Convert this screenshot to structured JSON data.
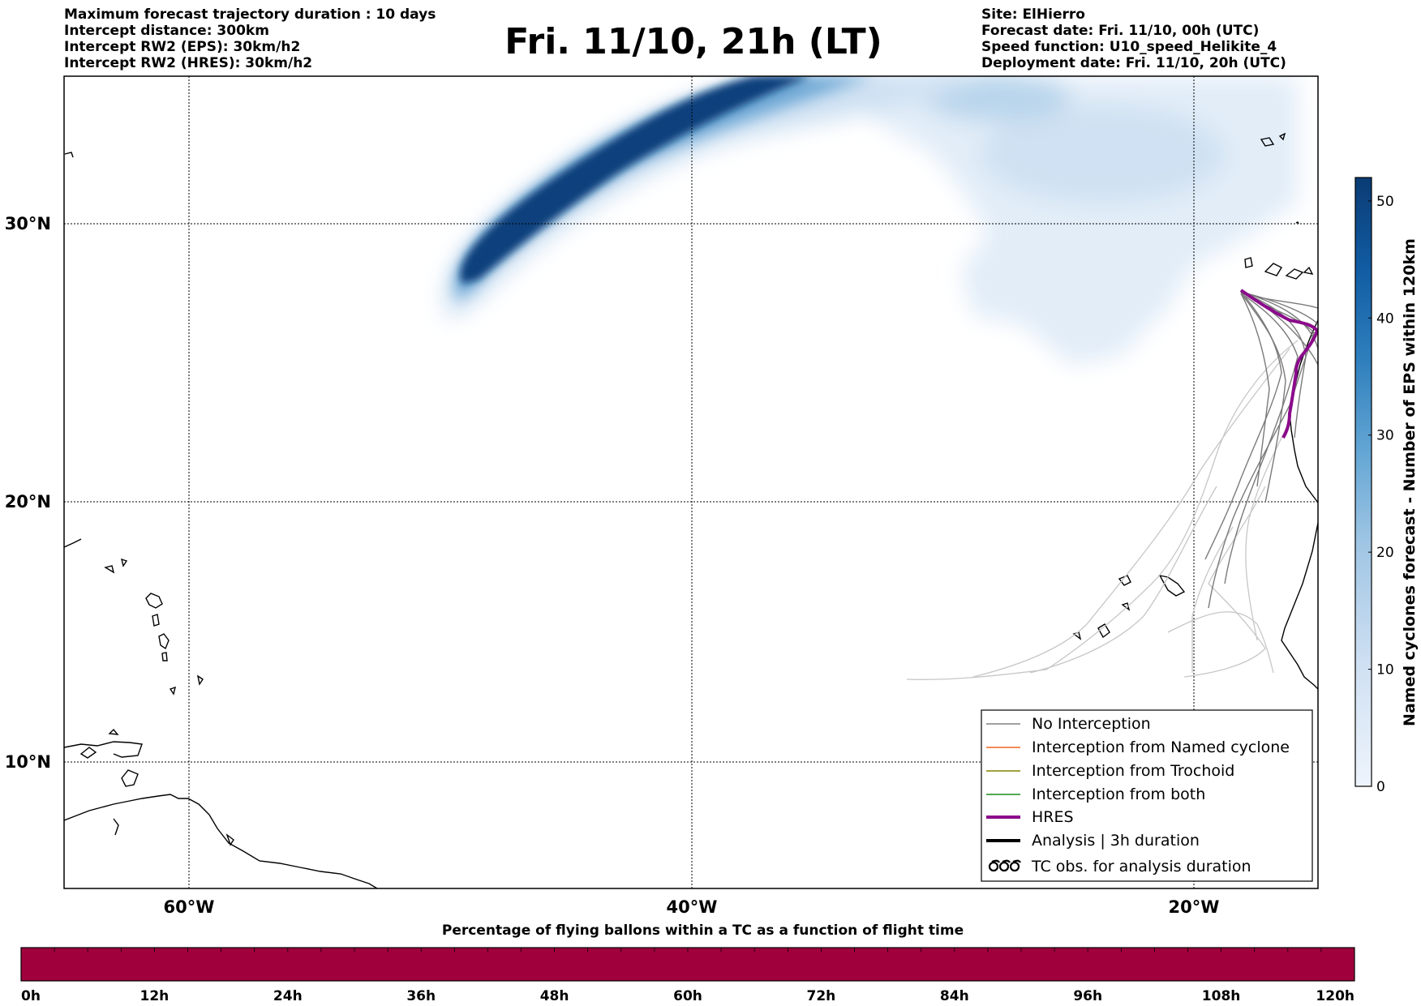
{
  "header": {
    "title": "Fri. 11/10, 21h (LT)",
    "left_lines": [
      "Maximum forecast trajectory duration : 10 days",
      "Intercept distance: 300km",
      "Intercept RW2 (EPS):  30km/h2",
      "Intercept RW2 (HRES): 30km/h2"
    ],
    "right_lines": [
      "Site: ElHierro",
      "Forecast date: Fri. 11/10, 00h (UTC)",
      "Speed function: U10_speed_Helikite_4",
      "Deployment date: Fri. 11/10, 20h (UTC)"
    ]
  },
  "map": {
    "lat_labels": [
      "30°N",
      "20°N",
      "10°N"
    ],
    "lon_labels": [
      "60°W",
      "40°W",
      "20°W"
    ]
  },
  "legend": {
    "items": [
      {
        "label": "No Interception",
        "color": "#808080"
      },
      {
        "label": "Interception from Named cyclone",
        "color": "#f26522"
      },
      {
        "label": "Interception from Trochoid",
        "color": "#808000"
      },
      {
        "label": "Interception from both",
        "color": "#1a8a1a"
      },
      {
        "label": "HRES",
        "color": "#8b0a8b"
      },
      {
        "label": "Analysis | 3h duration",
        "color": "#000000"
      },
      {
        "label": "TC obs. for analysis duration",
        "color": "#000000"
      }
    ]
  },
  "colorbar": {
    "label": "Named cyclones forecast - Number of EPS within 120km",
    "ticks": [
      "0",
      "10",
      "20",
      "30",
      "40",
      "50"
    ],
    "min": 0,
    "max": 52,
    "colors": [
      "#e6f0fa",
      "#cddff2",
      "#a9cce6",
      "#6eaed6",
      "#3a8bc4",
      "#1766ac",
      "#0a3b74"
    ]
  },
  "timeline": {
    "title": "Percentage of flying ballons within a TC as a function of flight time",
    "ticks": [
      "0h",
      "12h",
      "24h",
      "36h",
      "48h",
      "60h",
      "72h",
      "84h",
      "96h",
      "108h",
      "120h"
    ],
    "bar_color": "#a0003c"
  }
}
